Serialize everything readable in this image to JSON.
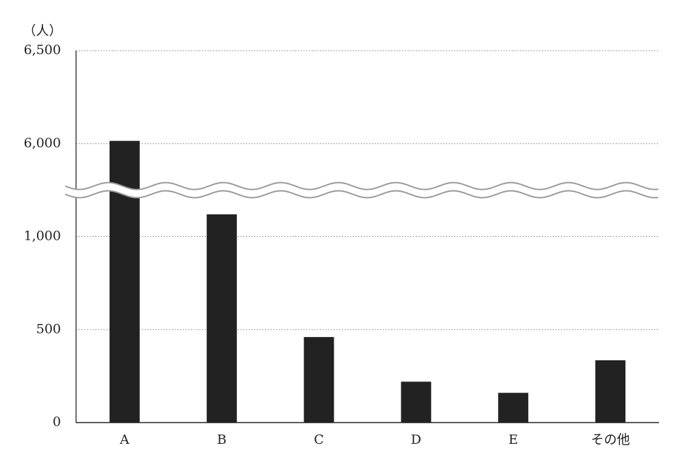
{
  "chart_data": {
    "type": "bar",
    "y_label": "（人）",
    "categories": [
      "A",
      "B",
      "C",
      "D",
      "E",
      "その他"
    ],
    "values": [
      6015,
      1120,
      460,
      220,
      160,
      335
    ],
    "color": "#222222",
    "ylim": [
      0,
      6500
    ],
    "yticks": [
      0,
      500,
      {
        "value": 1000,
        "label": "1,000"
      },
      {
        "value": 6000,
        "label": "6,000"
      },
      {
        "value": 6500,
        "label": "6,500"
      }
    ],
    "axis_break": true,
    "grid": true
  }
}
